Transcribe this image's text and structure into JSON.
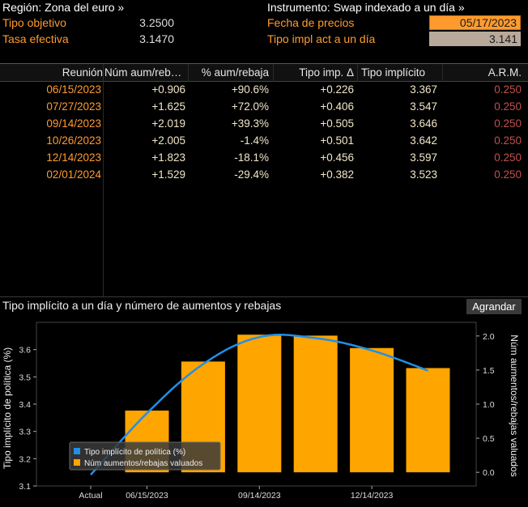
{
  "header": {
    "region_label": "Región: Zona del euro »",
    "instrument_label": "Instrumento: Swap indexado a un día »",
    "target_rate_label": "Tipo objetivo",
    "target_rate_value": "3.2500",
    "effective_rate_label": "Tasa efectiva",
    "effective_rate_value": "3.1470",
    "price_date_label": "Fecha de precios",
    "price_date_value": "05/17/2023",
    "implied_rate_label": "Tipo impl act a un día",
    "implied_rate_value": "3.141"
  },
  "table": {
    "columns": [
      "Reunión",
      "Núm aum/reb…",
      "% aum/rebaja",
      "Tipo imp. Δ",
      "Tipo implícito",
      "A.R.M."
    ],
    "rows": [
      {
        "date": "06/15/2023",
        "num": "+0.906",
        "pct": "+90.6%",
        "delta": "+0.226",
        "implied": "3.367",
        "arm": "0.250"
      },
      {
        "date": "07/27/2023",
        "num": "+1.625",
        "pct": "+72.0%",
        "delta": "+0.406",
        "implied": "3.547",
        "arm": "0.250"
      },
      {
        "date": "09/14/2023",
        "num": "+2.019",
        "pct": "+39.3%",
        "delta": "+0.505",
        "implied": "3.646",
        "arm": "0.250"
      },
      {
        "date": "10/26/2023",
        "num": "+2.005",
        "pct": "-1.4%",
        "delta": "+0.501",
        "implied": "3.642",
        "arm": "0.250"
      },
      {
        "date": "12/14/2023",
        "num": "+1.823",
        "pct": "-18.1%",
        "delta": "+0.456",
        "implied": "3.597",
        "arm": "0.250"
      },
      {
        "date": "02/01/2024",
        "num": "+1.529",
        "pct": "-29.4%",
        "delta": "+0.382",
        "implied": "3.523",
        "arm": "0.250"
      }
    ]
  },
  "chart_panel": {
    "title": "Tipo implícito a un día y número de aumentos y rebajas",
    "enlarge_button": "Agrandar"
  },
  "chart_data": {
    "type": "bar",
    "title": "Tipo implícito a un día y número de aumentos y rebajas",
    "ylabel": "Tipo implícito de política (%)",
    "y2label": "Núm aumentos/rebajas valuados",
    "x_tick_labels": [
      "Actual",
      "06/15/2023",
      "09/14/2023",
      "12/14/2023"
    ],
    "categories": [
      "06/15/2023",
      "07/27/2023",
      "09/14/2023",
      "10/26/2023",
      "12/14/2023",
      "02/01/2024"
    ],
    "ylim": [
      3.1,
      3.7
    ],
    "y_ticks": [
      "3.1",
      "3.2",
      "3.3",
      "3.4",
      "3.5",
      "3.6"
    ],
    "y2lim": [
      -0.2,
      2.2
    ],
    "y2_ticks": [
      "0.0",
      "0.5",
      "1.0",
      "1.5",
      "2.0"
    ],
    "series": [
      {
        "name": "Tipo implícito de política (%)",
        "type": "line",
        "color": "#1f8fe8",
        "x": [
          "Actual",
          "06/15/2023",
          "07/27/2023",
          "09/14/2023",
          "10/26/2023",
          "12/14/2023",
          "02/01/2024"
        ],
        "values": [
          3.141,
          3.367,
          3.547,
          3.646,
          3.642,
          3.597,
          3.523
        ]
      },
      {
        "name": "Núm aumentos/rebajas valuados",
        "type": "bar",
        "axis": "right",
        "color": "#ffa500",
        "values": [
          0.906,
          1.625,
          2.019,
          2.005,
          1.823,
          1.529
        ]
      }
    ],
    "legend_position": "bottom-left",
    "grid": false
  }
}
